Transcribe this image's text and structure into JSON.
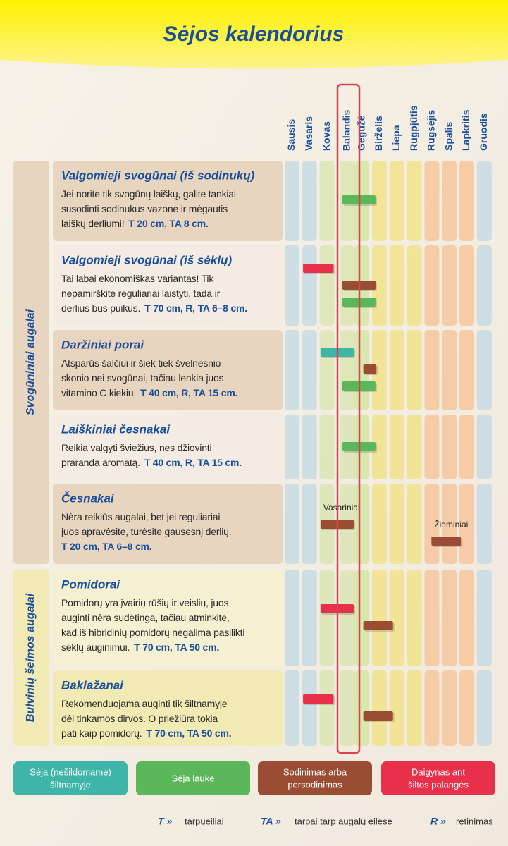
{
  "header": {
    "title": "Sėjos kalendorius"
  },
  "months": [
    "Sausis",
    "Vasaris",
    "Kovas",
    "Balandis",
    "Gegužė",
    "Birželis",
    "Liepa",
    "Rugpjūtis",
    "Rugsėjis",
    "Spalis",
    "Lapkritis",
    "Gruodis"
  ],
  "groups": [
    {
      "label": "Svogūniniai augalai"
    },
    {
      "label": "Bulvinių šeimos augalai"
    }
  ],
  "crops": [
    {
      "title": "Valgomieji svogūnai (iš sodinukų)",
      "lines": [
        {
          "text": "Jei norite tik svogūnų laiškų, galite tankiai"
        },
        {
          "text": "susodinti sodinukus vazone ir mėgautis"
        },
        {
          "text": "laiškų derliumi!",
          "spec": "T 20 cm, TA 8 cm."
        }
      ],
      "bars": [
        {
          "kind": 1,
          "start": 3.3,
          "end": 5.2
        }
      ]
    },
    {
      "title": "Valgomieji svogūnai (iš sėklų)",
      "lines": [
        {
          "text": "Tai labai ekonomiškas variantas! Tik"
        },
        {
          "text": "nepamirškite reguliariai laistyti, tada ir"
        },
        {
          "text": "derlius bus puikus.",
          "spec": "T 70 cm, R, TA 6–8 cm."
        }
      ],
      "bars": [
        {
          "kind": 3,
          "start": 1.05,
          "end": 2.8
        },
        {
          "kind": 2,
          "start": 3.3,
          "end": 5.2
        },
        {
          "kind": 1,
          "start": 3.3,
          "end": 5.2
        }
      ]
    },
    {
      "title": "Daržiniai porai",
      "lines": [
        {
          "text": "Atsparūs šalčiui ir šiek tiek švelnesnio"
        },
        {
          "text": "skonio nei svogūnai, tačiau lenkia juos"
        },
        {
          "text": "vitamino C kiekiu.",
          "spec": "T 40 cm, R, TA 15 cm."
        }
      ],
      "bars": [
        {
          "kind": 0,
          "start": 2.05,
          "end": 3.95
        },
        {
          "kind": 2,
          "start": 4.5,
          "end": 5.25
        },
        {
          "kind": 1,
          "start": 3.3,
          "end": 5.2
        }
      ]
    },
    {
      "title": "Laiškiniai česnakai",
      "lines": [
        {
          "text": "Reikia valgyti šviežius, nes džiovinti"
        },
        {
          "text": "praranda aromatą.",
          "spec": "T 40 cm, R, TA 15 cm."
        }
      ],
      "bars": [
        {
          "kind": 1,
          "start": 3.3,
          "end": 5.2
        }
      ]
    },
    {
      "title": "Česnakai",
      "lines": [
        {
          "text": "Nėra reiklūs augalai, bet jei reguliariai"
        },
        {
          "text": "juos apravėsite, turėsite gausesnį derlių."
        },
        {
          "spec": "T 20 cm, TA 6–8 cm."
        }
      ],
      "bars": [
        {
          "kind": 2,
          "start": 2.05,
          "end": 3.95,
          "label": "Vasariniai"
        },
        {
          "kind": 2,
          "start": 8.4,
          "end": 10.1,
          "label": "Žieminiai"
        }
      ]
    },
    {
      "title": "Pomidorai",
      "lines": [
        {
          "text": "Pomidorų yra įvairių rūšių ir veislių, juos"
        },
        {
          "text": "auginti nėra sudėtinga, tačiau atminkite,"
        },
        {
          "text": "kad iš hibridinių pomidorų negalima pasilikti"
        },
        {
          "text": "sėklų auginimui.",
          "spec": "T 70 cm, TA 50 cm."
        }
      ],
      "bars": [
        {
          "kind": 3,
          "start": 2.05,
          "end": 3.95
        },
        {
          "kind": 2,
          "start": 4.5,
          "end": 6.2
        }
      ]
    },
    {
      "title": "Baklažanai",
      "lines": [
        {
          "text": "Rekomenduojama auginti tik šiltnamyje"
        },
        {
          "text": "dėl tinkamos dirvos. O priežiūra tokia"
        },
        {
          "text": "pati kaip pomidorų.",
          "spec": "T 70 cm, TA 50 cm."
        }
      ],
      "bars": [
        {
          "kind": 3,
          "start": 1.05,
          "end": 2.8
        },
        {
          "kind": 2,
          "start": 4.5,
          "end": 6.2
        }
      ]
    }
  ],
  "legend": [
    {
      "line1": "Sėja (nešildomame)",
      "line2": "šiltnamyje",
      "color": "#3fb5aa"
    },
    {
      "line1": "Sėja lauke",
      "color": "#5bb85a"
    },
    {
      "line1": "Sodinimas arba",
      "line2": "persodinimas",
      "color": "#9b4d34"
    },
    {
      "line1": "Daigynas ant",
      "line2": "šiltos palangės",
      "color": "#e8304b"
    }
  ],
  "footer": [
    {
      "key": "T »",
      "text": "tarpueiliai"
    },
    {
      "key": "TA »",
      "text": "tarpai tarp augalų eilėse"
    },
    {
      "key": "R »",
      "text": "retinimas"
    }
  ]
}
